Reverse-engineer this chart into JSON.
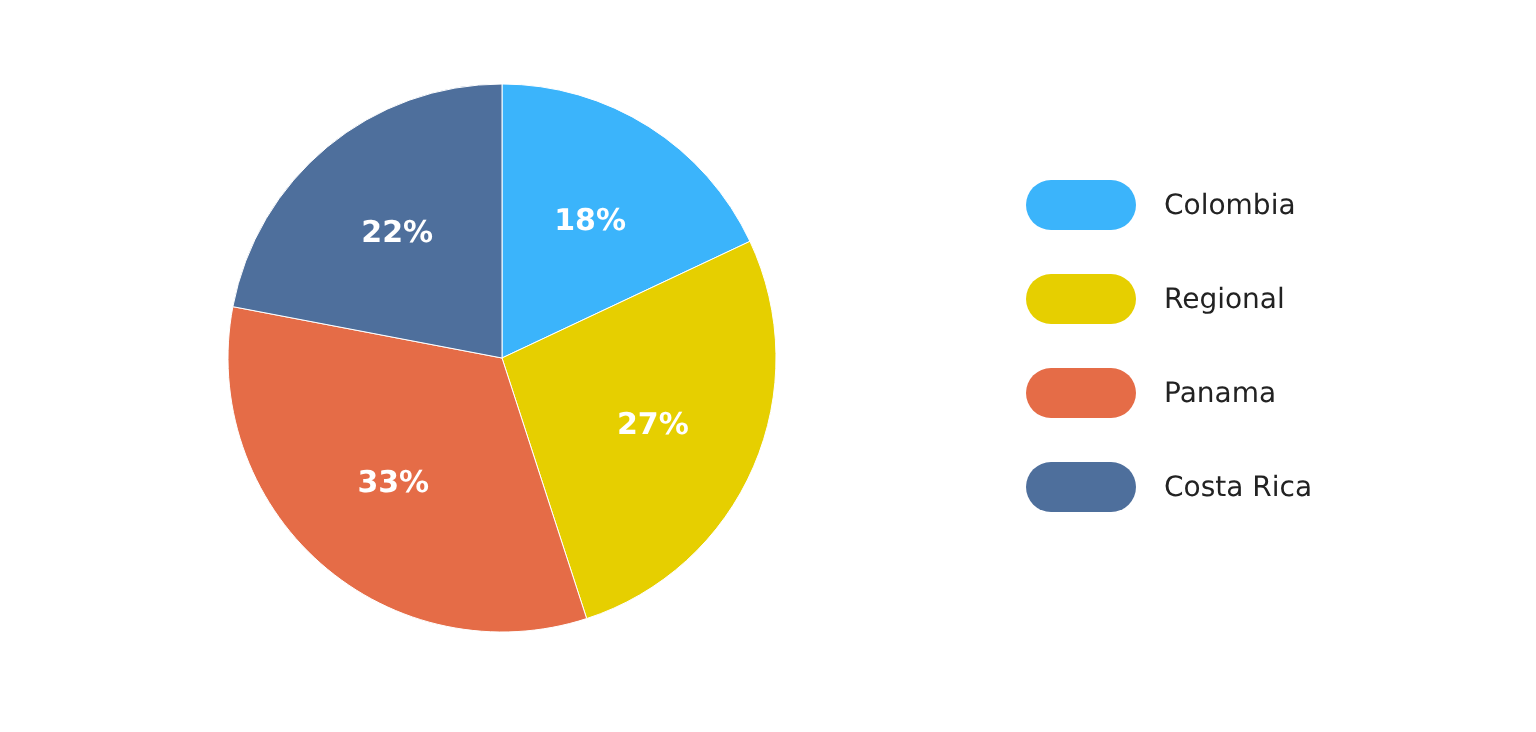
{
  "chart_data": {
    "type": "pie",
    "categories": [
      "Colombia",
      "Regional",
      "Panama",
      "Costa Rica"
    ],
    "values": [
      18,
      27,
      33,
      22
    ],
    "colors": [
      "#3bb4fb",
      "#e6cf00",
      "#e56c47",
      "#4e6f9c"
    ],
    "value_labels": [
      "18%",
      "27%",
      "33%",
      "22%"
    ],
    "legend": "right"
  }
}
